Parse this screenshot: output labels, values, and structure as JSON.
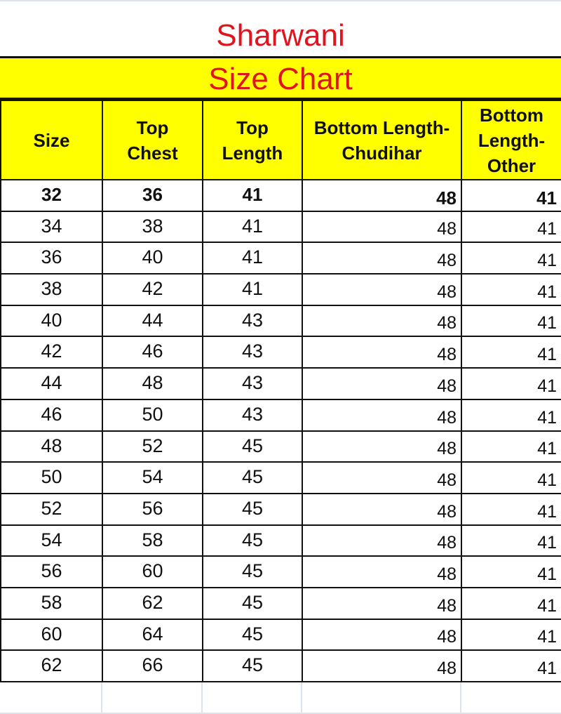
{
  "title": "Sharwani",
  "subtitle": "Size Chart",
  "columns": [
    "Size",
    "Top\nChest",
    "Top\nLength",
    "Bottom Length-\nChudihar",
    "Bottom\nLength-\nOther"
  ],
  "rows": [
    [
      "32",
      "36",
      "41",
      "48",
      "41"
    ],
    [
      "34",
      "38",
      "41",
      "48",
      "41"
    ],
    [
      "36",
      "40",
      "41",
      "48",
      "41"
    ],
    [
      "38",
      "42",
      "41",
      "48",
      "41"
    ],
    [
      "40",
      "44",
      "43",
      "48",
      "41"
    ],
    [
      "42",
      "46",
      "43",
      "48",
      "41"
    ],
    [
      "44",
      "48",
      "43",
      "48",
      "41"
    ],
    [
      "46",
      "50",
      "43",
      "48",
      "41"
    ],
    [
      "48",
      "52",
      "45",
      "48",
      "41"
    ],
    [
      "50",
      "54",
      "45",
      "48",
      "41"
    ],
    [
      "52",
      "56",
      "45",
      "48",
      "41"
    ],
    [
      "54",
      "58",
      "45",
      "48",
      "41"
    ],
    [
      "56",
      "60",
      "45",
      "48",
      "41"
    ],
    [
      "58",
      "62",
      "45",
      "48",
      "41"
    ],
    [
      "60",
      "64",
      "45",
      "48",
      "41"
    ],
    [
      "62",
      "66",
      "45",
      "48",
      "41"
    ]
  ],
  "colors": {
    "title": "#e0141e",
    "header_bg": "#ffff00"
  }
}
